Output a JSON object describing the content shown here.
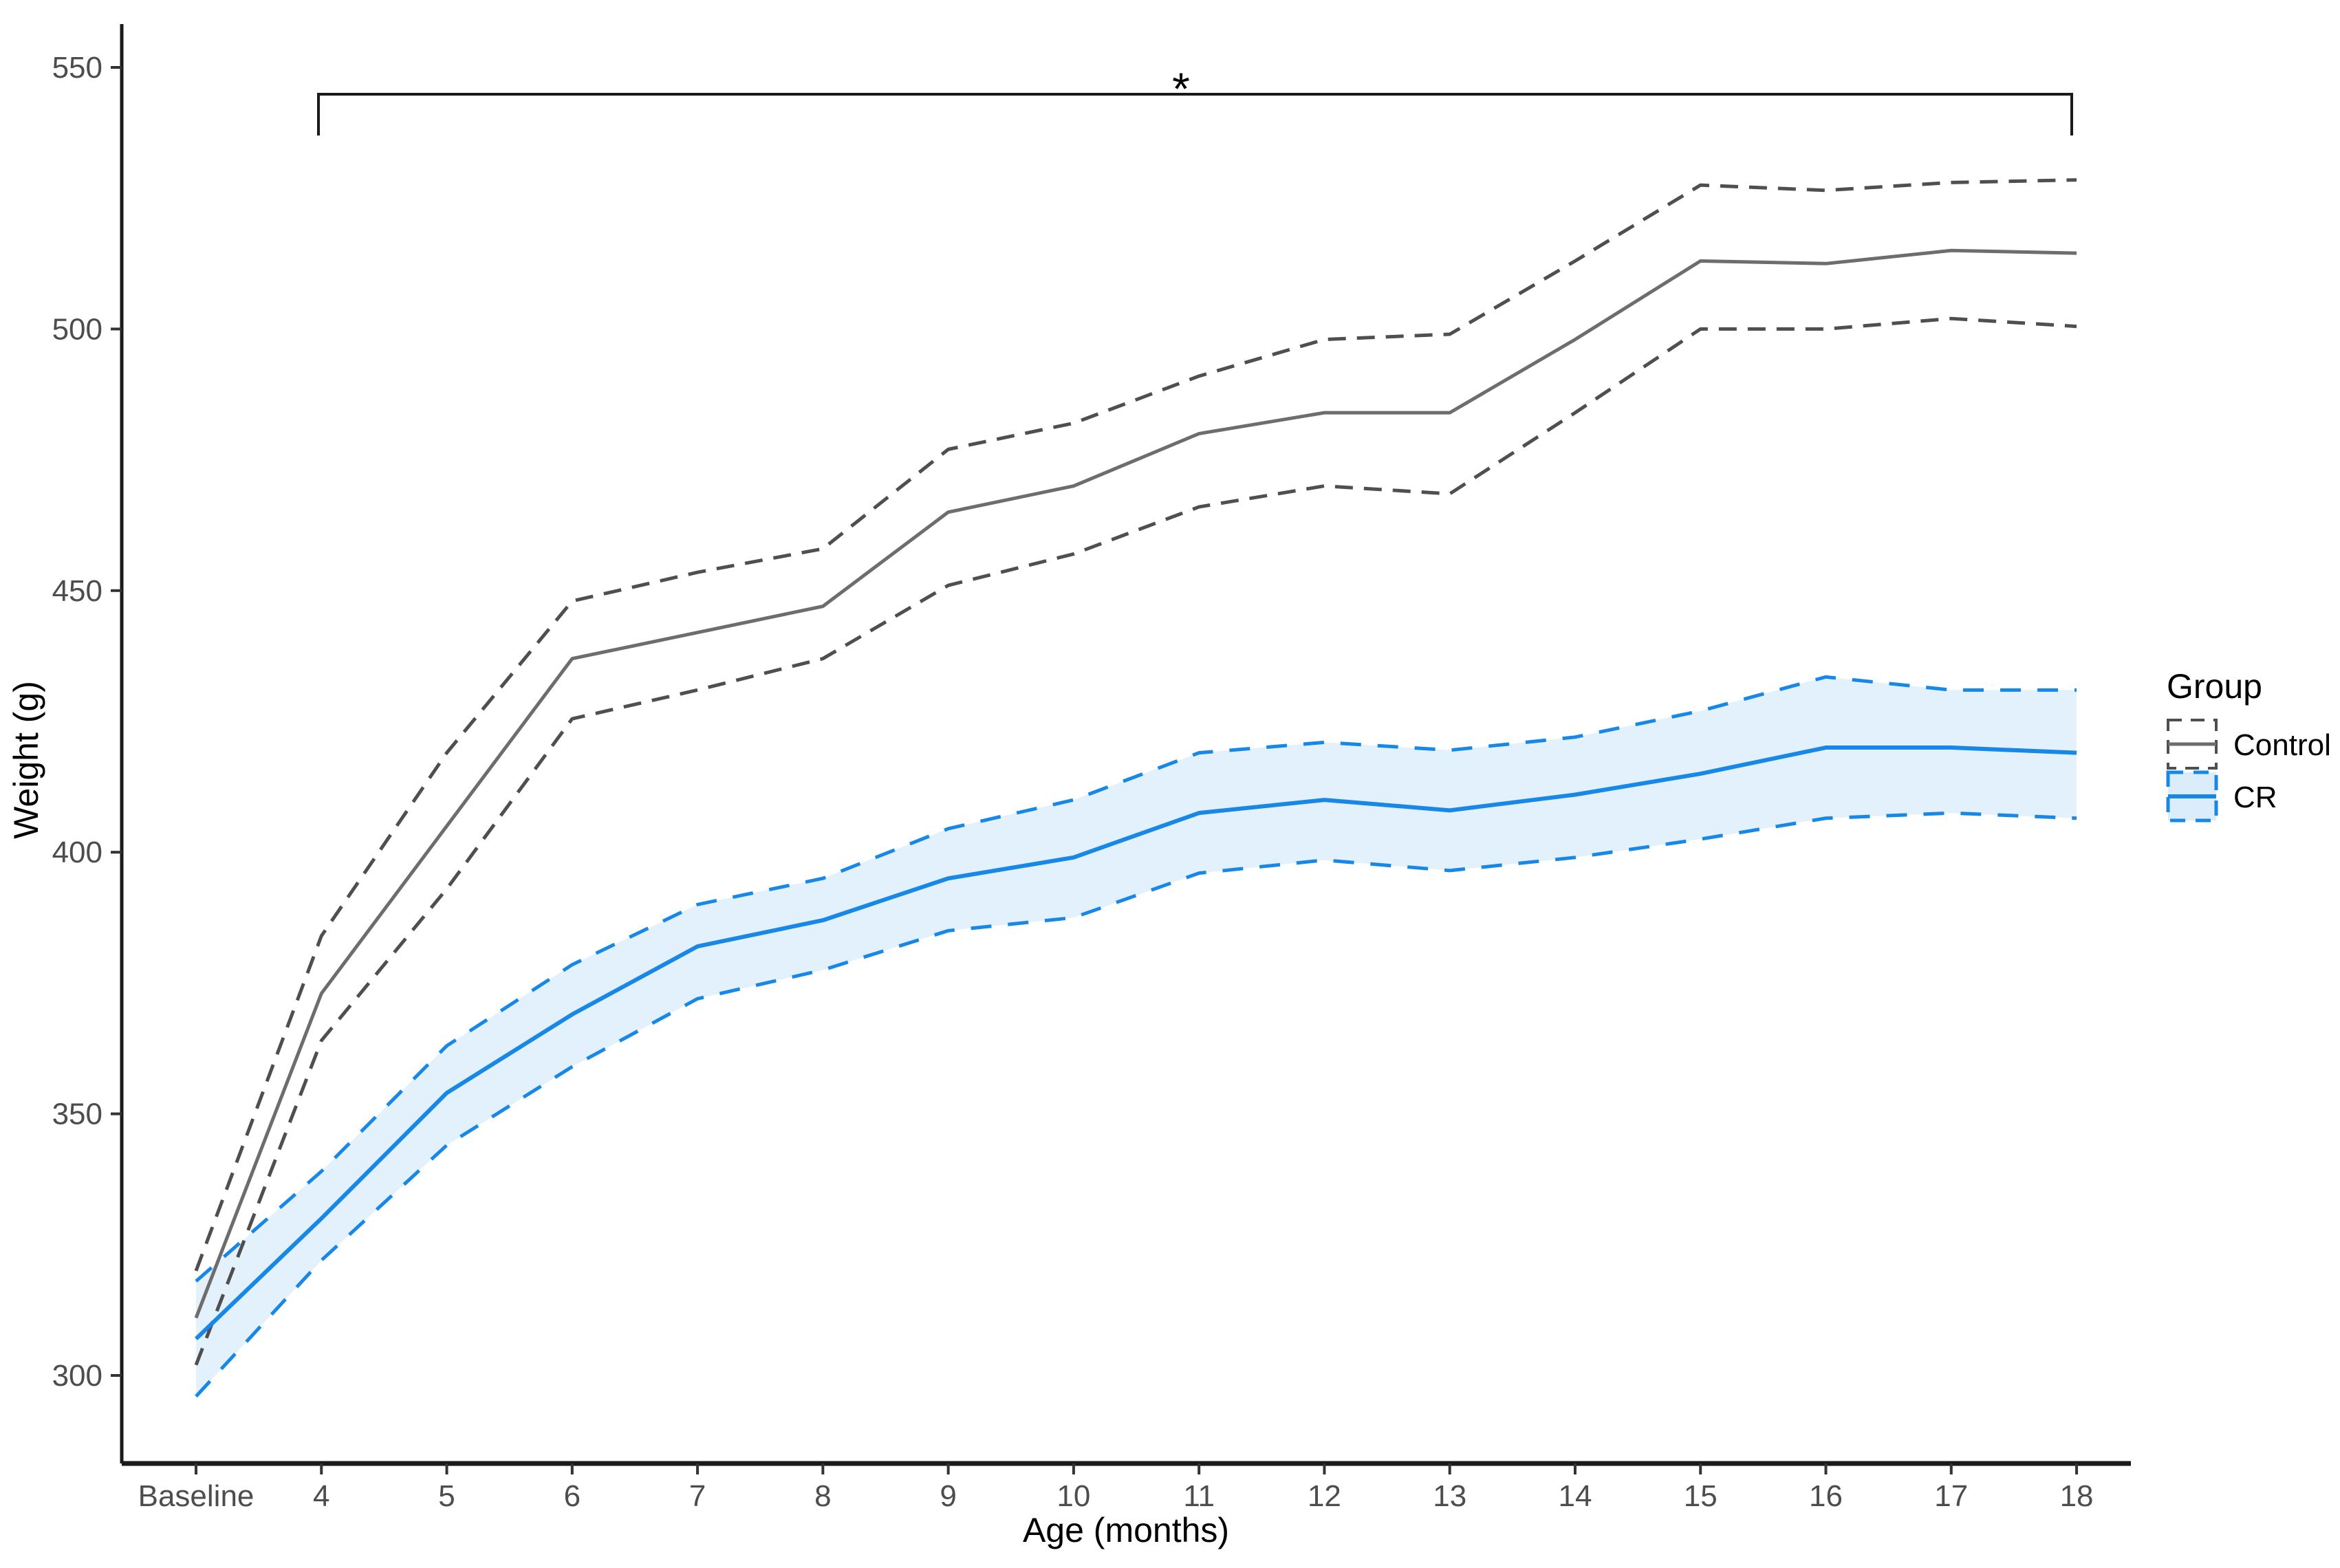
{
  "chart_data": {
    "type": "line",
    "title": "",
    "xlabel": "Age (months)",
    "ylabel": "Weight (g)",
    "categories": [
      "Baseline",
      "4",
      "5",
      "6",
      "7",
      "8",
      "9",
      "10",
      "11",
      "12",
      "13",
      "14",
      "15",
      "16",
      "17",
      "18"
    ],
    "yticks": [
      300,
      350,
      400,
      450,
      500,
      550
    ],
    "ylim": [
      283,
      558
    ],
    "grid": "off",
    "legend_position": "right",
    "series": [
      {
        "name": "Control mean",
        "group": "Control",
        "style": "solid",
        "color": "#6d6d6d",
        "values": [
          311,
          373,
          405,
          437,
          442,
          447,
          465,
          470,
          480,
          484,
          484,
          498,
          513,
          512.5,
          515,
          514.5
        ]
      },
      {
        "name": "Control upper CI",
        "group": "Control",
        "style": "dashed",
        "color": "#4f4f4f",
        "values": [
          320,
          384,
          419,
          448,
          453.5,
          458,
          477,
          482,
          491,
          498,
          499,
          513,
          527.5,
          526.5,
          528,
          528.5
        ]
      },
      {
        "name": "Control lower CI",
        "group": "Control",
        "style": "dashed",
        "color": "#4f4f4f",
        "values": [
          302,
          364,
          393,
          425.5,
          431,
          437,
          451,
          457,
          466,
          470,
          468.5,
          484,
          500,
          500,
          502,
          500.5
        ]
      },
      {
        "name": "CR mean",
        "group": "CR",
        "style": "solid",
        "color": "#1787e8",
        "values": [
          307,
          330,
          354,
          369,
          382,
          387,
          395,
          399,
          407.5,
          410,
          408,
          411,
          415,
          420,
          420,
          419
        ]
      },
      {
        "name": "CR upper CI",
        "group": "CR",
        "style": "dashed",
        "color": "#1787e8",
        "values": [
          318,
          339,
          363,
          378.5,
          390,
          395,
          404.5,
          410,
          419,
          421,
          419.5,
          422,
          427,
          433.5,
          431,
          431
        ]
      },
      {
        "name": "CR lower CI",
        "group": "CR",
        "style": "dashed",
        "color": "#1787e8",
        "values": [
          296,
          322,
          344,
          359,
          372,
          377.5,
          385,
          387.5,
          396,
          398.5,
          396.5,
          399,
          402.5,
          406.5,
          407.5,
          406.5
        ]
      }
    ],
    "band": {
      "name": "CR confidence band",
      "fill": "#dbedfa",
      "opacity": 0.8
    },
    "annotation": {
      "symbol": "*",
      "bracket_from": "4",
      "bracket_to": "18"
    },
    "legend": {
      "title": "Group",
      "entries": [
        {
          "label": "Control",
          "line_color": "#6d6d6d",
          "border_color": "#4f4f4f",
          "fill": "#ffffff"
        },
        {
          "label": "CR",
          "line_color": "#1787e8",
          "border_color": "#1787e8",
          "fill": "#dbedfa"
        }
      ]
    },
    "colors": {
      "control_line": "#6d6d6d",
      "control_dash": "#4f4f4f",
      "cr_line": "#1787e8",
      "cr_band_fill": "#dbedfa",
      "axis": "#1a1a1a",
      "tick_text": "#4d4d4d"
    }
  }
}
